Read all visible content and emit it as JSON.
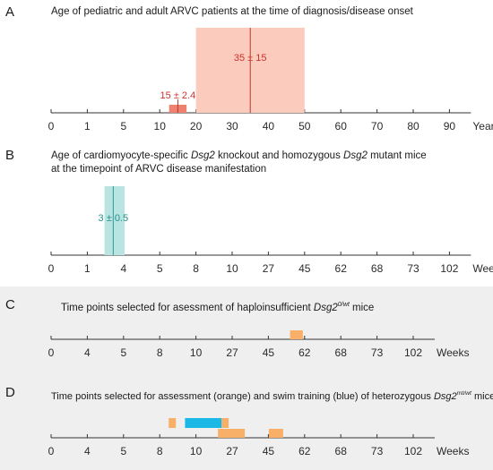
{
  "panels": [
    {
      "letter": "A",
      "title": "Age of pediatric and adult ARVC patients at the time of diagnosis/disease onset",
      "ticks": [
        "0",
        "1",
        "5",
        "10",
        "20",
        "30",
        "40",
        "50",
        "60",
        "70",
        "80",
        "90"
      ],
      "unit": "Years",
      "bars": [
        {
          "label": "15 ± 2.4",
          "mean": 15,
          "sd": 2.4,
          "from": 12.6,
          "to": 17.4,
          "color": "#f08070"
        },
        {
          "label": "35 ± 15",
          "mean": 35,
          "sd": 15,
          "from": 20,
          "to": 50,
          "color": "#fbcbbd"
        }
      ]
    },
    {
      "letter": "B",
      "title_lines": [
        [
          {
            "t": "Age of cardiomyocyte-specific "
          },
          {
            "t": "Dsg2",
            "i": true
          },
          {
            "t": " knockout and homozygous "
          },
          {
            "t": "Dsg2",
            "i": true
          },
          {
            "t": " mutant mice"
          }
        ],
        [
          {
            "t": "at the timepoint of ARVC disease manifestation"
          }
        ]
      ],
      "ticks": [
        "0",
        "1",
        "4",
        "5",
        "8",
        "10",
        "27",
        "45",
        "62",
        "68",
        "73",
        "102"
      ],
      "unit": "Weeks",
      "bars": [
        {
          "label": "3 ± 0.5",
          "mean": 3,
          "sd": 0.5,
          "from": 2.5,
          "to": 3.5,
          "color": "#b9e4e1"
        }
      ]
    },
    {
      "letter": "C",
      "title_parts": [
        {
          "t": "Time points selected for asessment of haploinsufficient "
        },
        {
          "t": "Dsg2",
          "i": true
        },
        {
          "t": "0/wt",
          "i": true,
          "sup": true
        },
        {
          "t": " mice"
        }
      ],
      "ticks": [
        "0",
        "4",
        "5",
        "8",
        "10",
        "27",
        "45",
        "62",
        "68",
        "73",
        "102"
      ],
      "unit": "Weeks",
      "marks": [
        {
          "tick": "45",
          "offset": 0.55,
          "width": 0.45,
          "color": "#f8b068"
        }
      ]
    },
    {
      "letter": "D",
      "title_parts": [
        {
          "t": "Time points selected for assessment (orange) and swim training (blue) of heterozygous "
        },
        {
          "t": "Dsg2",
          "i": true
        },
        {
          "t": "mt/wt",
          "i": true,
          "sup": true
        },
        {
          "t": " mice"
        }
      ],
      "ticks": [
        "0",
        "4",
        "5",
        "8",
        "10",
        "27",
        "45",
        "62",
        "68",
        "73",
        "102"
      ],
      "unit": "Weeks",
      "assessment_color": "#f8b068",
      "training_color": "#1bb8e6",
      "training": {
        "from": 9,
        "to": 22
      },
      "assessments": [
        8,
        22,
        25,
        49
      ]
    }
  ]
}
